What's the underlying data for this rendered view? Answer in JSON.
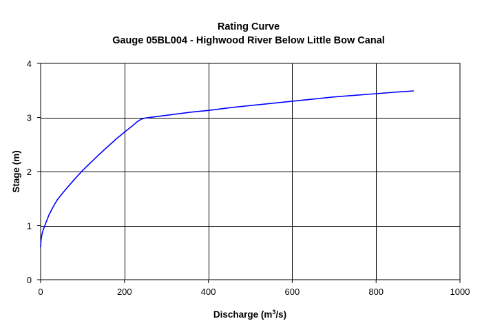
{
  "chart_data": {
    "type": "line",
    "title": "Rating Curve",
    "subtitle": "Gauge 05BL004 - Highwood River Below Little Bow Canal",
    "xlabel_main": "Discharge (m",
    "xlabel_sup": "3",
    "xlabel_tail": "/s)",
    "ylabel": "Stage (m)",
    "xlim": [
      0,
      1000
    ],
    "ylim": [
      0,
      4
    ],
    "xticks": [
      0,
      200,
      400,
      600,
      800,
      1000
    ],
    "yticks": [
      0,
      1,
      2,
      3,
      4
    ],
    "grid": true,
    "line_color": "#0000ff",
    "series": [
      {
        "x": [
          0,
          1,
          3,
          6,
          10,
          15,
          20,
          30,
          40,
          50,
          60,
          80,
          100,
          120,
          140,
          160,
          180,
          200,
          215,
          230,
          240,
          250,
          280,
          320,
          360,
          400,
          450,
          500,
          550,
          600,
          650,
          700,
          750,
          800,
          850,
          890
        ],
        "y": [
          0.6,
          0.73,
          0.83,
          0.92,
          1.0,
          1.1,
          1.2,
          1.35,
          1.48,
          1.58,
          1.67,
          1.85,
          2.02,
          2.17,
          2.32,
          2.46,
          2.6,
          2.73,
          2.82,
          2.92,
          2.97,
          2.99,
          3.02,
          3.06,
          3.1,
          3.13,
          3.18,
          3.22,
          3.26,
          3.3,
          3.34,
          3.38,
          3.41,
          3.44,
          3.47,
          3.49
        ]
      }
    ]
  }
}
